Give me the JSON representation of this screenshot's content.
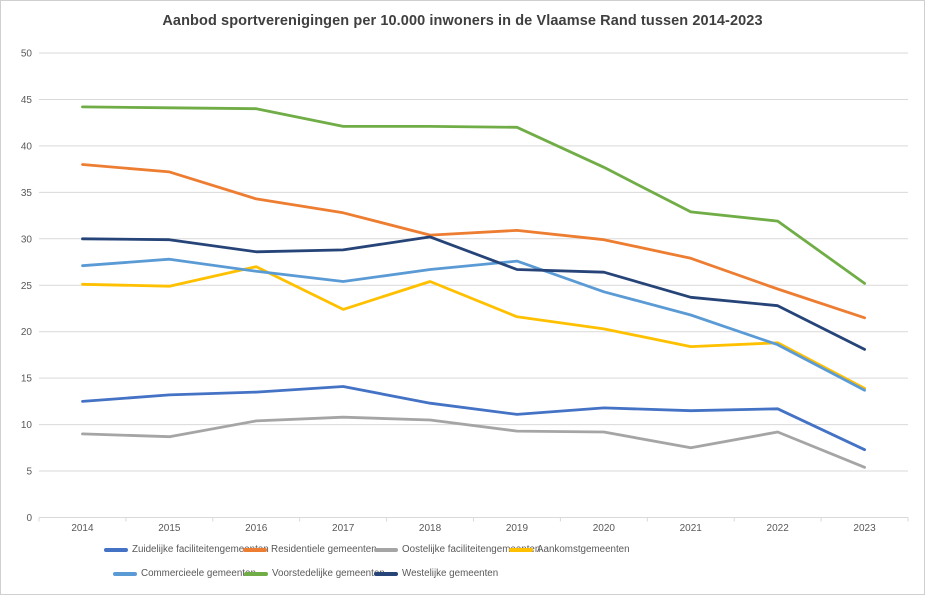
{
  "title": "Aanbod sportverenigingen per 10.000 inwoners  in de Vlaamse Rand tussen 2014-2023",
  "axes": {
    "y_tick_labels": [
      "0",
      "5",
      "10",
      "15",
      "20",
      "25",
      "30",
      "35",
      "40",
      "45",
      "50"
    ],
    "x_tick_labels": [
      "2014",
      "2015",
      "2016",
      "2017",
      "2018",
      "2019",
      "2020",
      "2021",
      "2022",
      "2023"
    ]
  },
  "colors": {
    "gridline": "#d9d9d9",
    "axis_text": "#595959",
    "title_text": "#3f3f3f"
  },
  "chart_data": {
    "type": "line",
    "title": "Aanbod sportverenigingen per 10.000 inwoners  in de Vlaamse Rand tussen 2014-2023",
    "categories": [
      "2014",
      "2015",
      "2016",
      "2017",
      "2018",
      "2019",
      "2020",
      "2021",
      "2022",
      "2023"
    ],
    "xlabel": "",
    "ylabel": "",
    "ylim": [
      0,
      50
    ],
    "ytick_step": 5,
    "grid": true,
    "legend_position": "bottom",
    "series": [
      {
        "name": "Zuidelijke faciliteitengemeenten",
        "color": "#4472C4",
        "values": [
          12.5,
          13.2,
          13.5,
          14.1,
          12.3,
          11.1,
          11.8,
          11.5,
          11.7,
          7.3
        ]
      },
      {
        "name": "Residentiele gemeenten",
        "color": "#ED7D31",
        "values": [
          38.0,
          37.2,
          34.3,
          32.8,
          30.4,
          30.9,
          29.9,
          27.9,
          24.6,
          21.5
        ]
      },
      {
        "name": "Oostelijke faciliteitengemeenten",
        "color": "#A5A5A5",
        "values": [
          9.0,
          8.7,
          10.4,
          10.8,
          10.5,
          9.3,
          9.2,
          7.5,
          9.2,
          5.4
        ]
      },
      {
        "name": "Aankomstgemeenten",
        "color": "#FFC000",
        "values": [
          25.1,
          24.9,
          27.0,
          22.4,
          25.4,
          21.6,
          20.3,
          18.4,
          18.8,
          13.9
        ]
      },
      {
        "name": "Commercieele gemeenten",
        "color": "#5B9BD5",
        "values": [
          27.1,
          27.8,
          26.5,
          25.4,
          26.7,
          27.6,
          24.3,
          21.8,
          18.6,
          13.7
        ]
      },
      {
        "name": "Voorstedelijke gemeenten",
        "color": "#70AD47",
        "values": [
          44.2,
          44.1,
          44.0,
          42.1,
          42.1,
          42.0,
          37.7,
          32.9,
          31.9,
          25.2
        ]
      },
      {
        "name": "Westelijke gemeenten",
        "color": "#264478",
        "values": [
          30.0,
          29.9,
          28.6,
          28.8,
          30.2,
          26.7,
          26.4,
          23.7,
          22.8,
          18.1
        ]
      }
    ]
  }
}
